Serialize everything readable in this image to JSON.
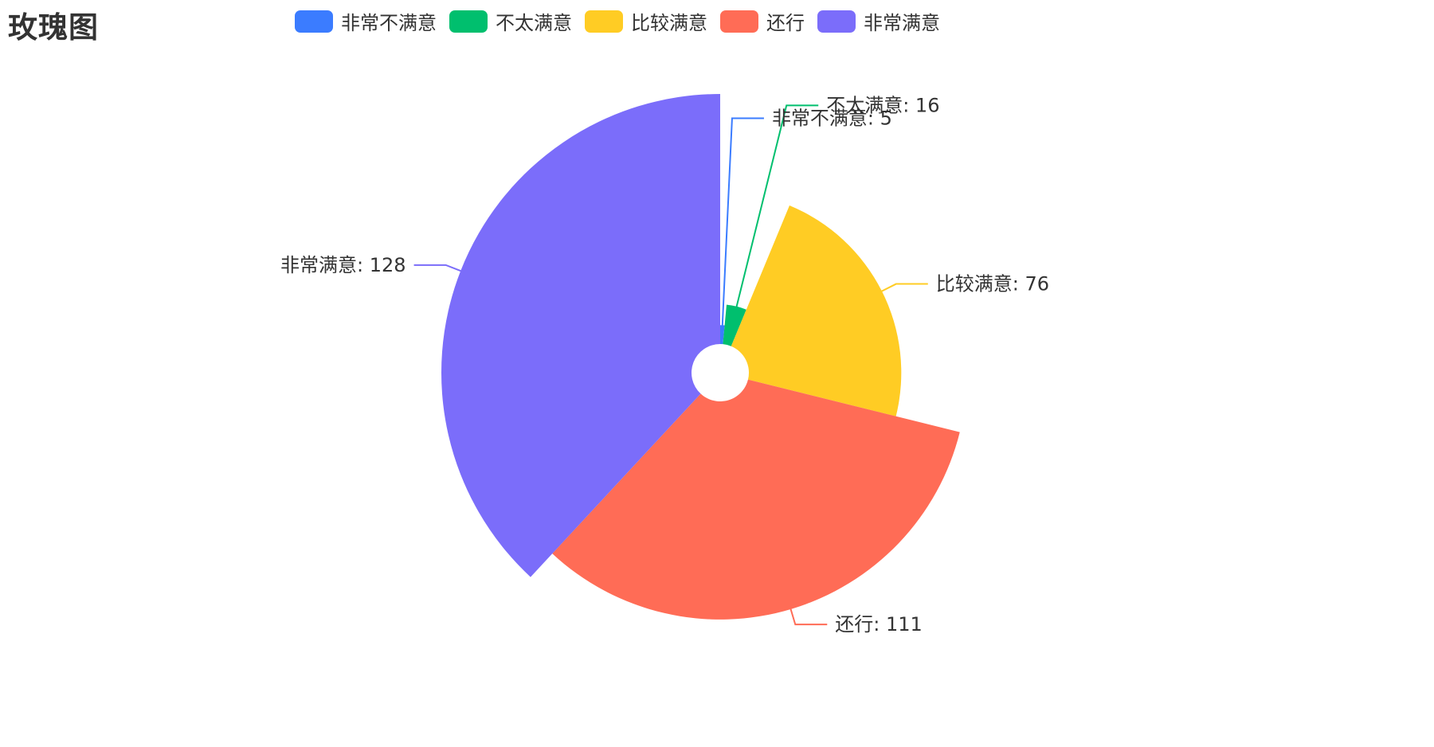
{
  "title": "玫瑰图",
  "chart_data": {
    "type": "pie",
    "subtype": "rose",
    "title": "玫瑰图",
    "legend_position": "top-center",
    "label_format": "{name}: {value}",
    "categories": [
      "非常不满意",
      "不太满意",
      "比较满意",
      "还行",
      "非常满意"
    ],
    "values": [
      5,
      16,
      76,
      111,
      128
    ],
    "colors": [
      "#3b7cff",
      "#00bf6e",
      "#ffcc24",
      "#ff6c56",
      "#7b6dfa"
    ]
  }
}
